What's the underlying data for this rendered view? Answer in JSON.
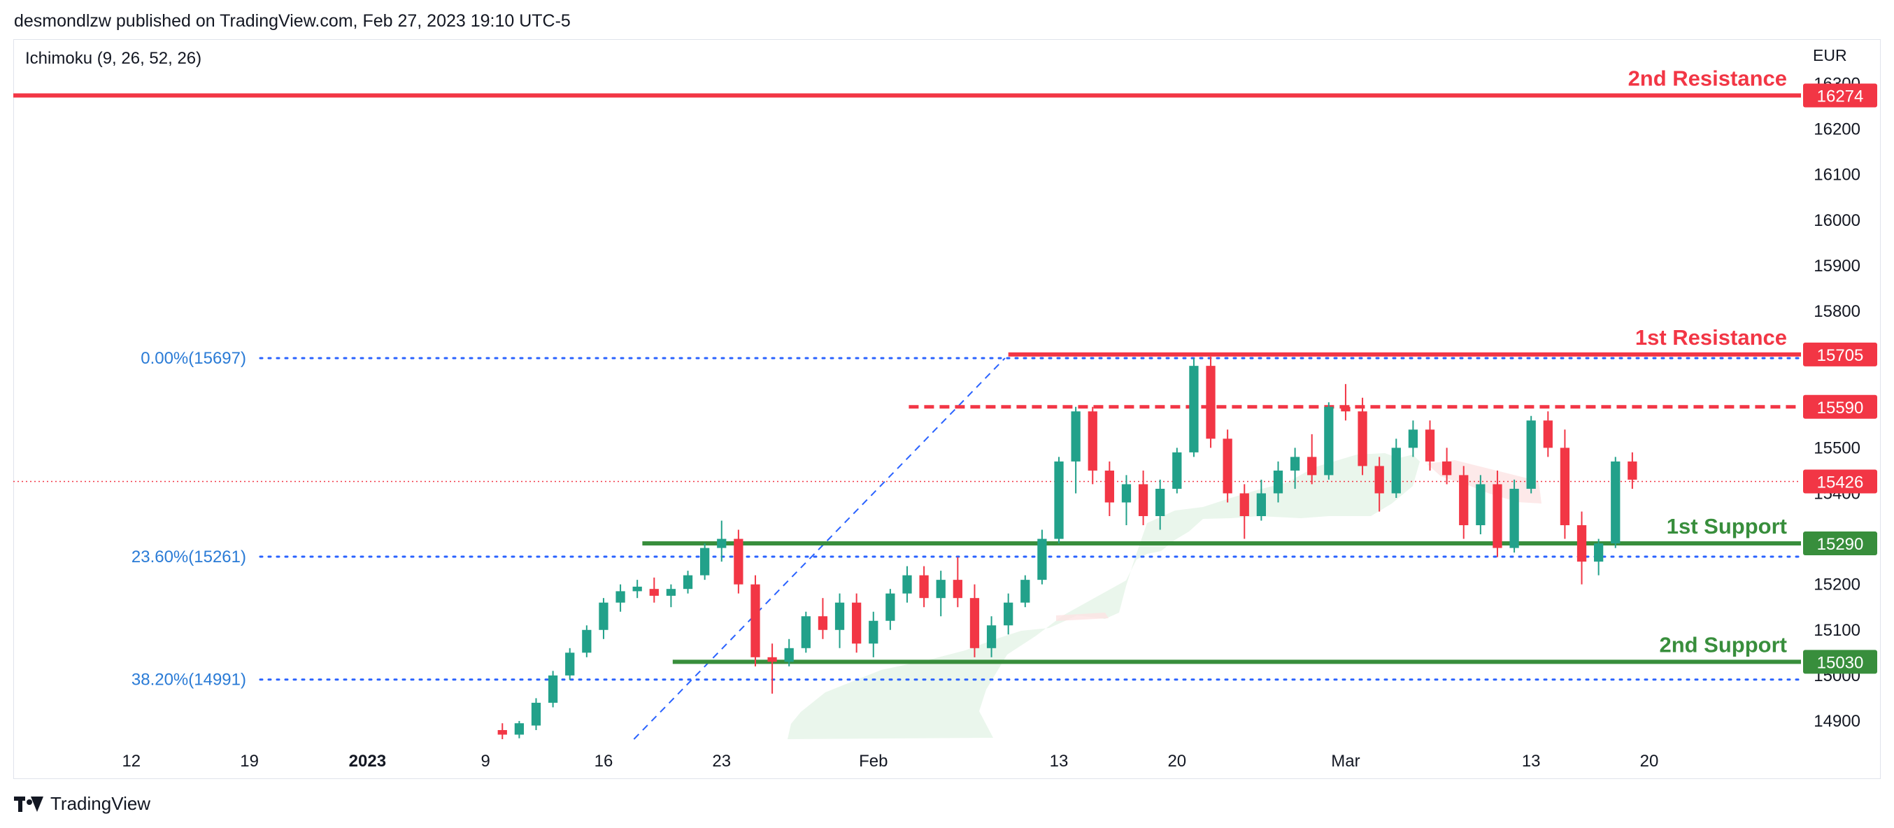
{
  "header": {
    "publisher": "desmondlzw published on TradingView.com, Feb 27, 2023 19:10 UTC-5"
  },
  "indicator_label": "Ichimoku (9, 26, 52, 26)",
  "currency": "EUR",
  "footer": {
    "brand": "TradingView"
  },
  "colors": {
    "up": "#22a18a",
    "down": "#f23645",
    "resistance": "#f23645",
    "support": "#388e3c",
    "fib": "#2962ff",
    "fib_text": "#2a7bd6",
    "cloud_green": "#e3f3e6",
    "cloud_red": "#fde3e3",
    "axis_text": "#131722"
  },
  "chart_data": {
    "type": "candlestick",
    "y_ticks": [
      14900,
      15000,
      15100,
      15200,
      15300,
      15400,
      15500,
      15600,
      15700,
      15800,
      15900,
      16000,
      16100,
      16200,
      16300
    ],
    "x_ticks": [
      {
        "label": "12",
        "day": -20
      },
      {
        "label": "19",
        "day": -13
      },
      {
        "label": "2023",
        "day": -6,
        "bold": true
      },
      {
        "label": "9",
        "day": 1
      },
      {
        "label": "16",
        "day": 8
      },
      {
        "label": "23",
        "day": 15
      },
      {
        "label": "Feb",
        "day": 24
      },
      {
        "label": "13",
        "day": 35
      },
      {
        "label": "20",
        "day": 42
      },
      {
        "label": "Mar",
        "day": 52
      },
      {
        "label": "13",
        "day": 63
      },
      {
        "label": "20",
        "day": 70
      }
    ],
    "ylim": [
      14860,
      16330
    ],
    "xlim": [
      -27,
      79
    ],
    "levels": [
      {
        "name": "2nd Resistance",
        "value": 16274,
        "badge": "16274",
        "kind": "resistance",
        "style": "solid",
        "from_day": -27
      },
      {
        "name": "1st Resistance",
        "value": 15705,
        "badge": "15705",
        "kind": "resistance",
        "style": "solid",
        "from_day": 32.0
      },
      {
        "name": "",
        "value": 15590,
        "badge": "15590",
        "kind": "resistance",
        "style": "dashed",
        "from_day": 26.1
      },
      {
        "name": "1st Support",
        "value": 15290,
        "badge": "15290",
        "kind": "support",
        "style": "solid",
        "from_day": 10.3
      },
      {
        "name": "2nd Support",
        "value": 15030,
        "badge": "15030",
        "kind": "support",
        "style": "solid",
        "from_day": 12.1
      }
    ],
    "current_price": {
      "value": 15426,
      "badge": "15426"
    },
    "fib_levels": [
      {
        "label": "0.00%(15697)",
        "value": 15697
      },
      {
        "label": "23.60%(15261)",
        "value": 15261
      },
      {
        "label": "38.20%(14991)",
        "value": 14991
      }
    ],
    "fib_trend": {
      "from": {
        "day": 9.8,
        "value": 14860
      },
      "to": {
        "day": 31.8,
        "value": 15697
      }
    },
    "candles": [
      [
        2,
        14880,
        14895,
        14860,
        14870
      ],
      [
        3,
        14870,
        14900,
        14862,
        14895
      ],
      [
        4,
        14890,
        14950,
        14880,
        14940
      ],
      [
        5,
        14940,
        15010,
        14930,
        15000
      ],
      [
        6,
        15000,
        15060,
        14990,
        15050
      ],
      [
        7,
        15050,
        15110,
        15040,
        15100
      ],
      [
        8,
        15100,
        15170,
        15080,
        15160
      ],
      [
        9,
        15160,
        15200,
        15140,
        15185
      ],
      [
        10,
        15185,
        15210,
        15170,
        15195
      ],
      [
        11,
        15190,
        15215,
        15160,
        15175
      ],
      [
        12,
        15175,
        15200,
        15150,
        15190
      ],
      [
        13,
        15190,
        15230,
        15180,
        15220
      ],
      [
        14,
        15220,
        15290,
        15210,
        15280
      ],
      [
        15,
        15280,
        15340,
        15250,
        15300
      ],
      [
        16,
        15300,
        15320,
        15180,
        15200
      ],
      [
        17,
        15200,
        15220,
        15020,
        15040
      ],
      [
        18,
        15040,
        15070,
        14960,
        15030
      ],
      [
        19,
        15030,
        15080,
        15020,
        15060
      ],
      [
        20,
        15060,
        15140,
        15050,
        15130
      ],
      [
        21,
        15130,
        15170,
        15080,
        15100
      ],
      [
        22,
        15100,
        15180,
        15060,
        15160
      ],
      [
        23,
        15160,
        15180,
        15050,
        15070
      ],
      [
        24,
        15070,
        15140,
        15040,
        15120
      ],
      [
        25,
        15120,
        15190,
        15100,
        15180
      ],
      [
        26,
        15180,
        15240,
        15160,
        15220
      ],
      [
        27,
        15220,
        15240,
        15150,
        15170
      ],
      [
        28,
        15170,
        15230,
        15130,
        15210
      ],
      [
        29,
        15210,
        15260,
        15150,
        15170
      ],
      [
        30,
        15170,
        15200,
        15040,
        15060
      ],
      [
        31,
        15060,
        15130,
        15040,
        15110
      ],
      [
        32,
        15110,
        15180,
        15090,
        15160
      ],
      [
        33,
        15160,
        15220,
        15150,
        15210
      ],
      [
        34,
        15210,
        15320,
        15200,
        15300
      ],
      [
        35,
        15300,
        15480,
        15290,
        15470
      ],
      [
        36,
        15470,
        15590,
        15400,
        15580
      ],
      [
        37,
        15580,
        15590,
        15420,
        15450
      ],
      [
        38,
        15450,
        15470,
        15350,
        15380
      ],
      [
        39,
        15380,
        15440,
        15330,
        15420
      ],
      [
        40,
        15420,
        15450,
        15330,
        15350
      ],
      [
        41,
        15350,
        15430,
        15320,
        15410
      ],
      [
        42,
        15410,
        15500,
        15400,
        15490
      ],
      [
        43,
        15490,
        15697,
        15480,
        15680
      ],
      [
        44,
        15680,
        15700,
        15500,
        15520
      ],
      [
        45,
        15520,
        15540,
        15380,
        15400
      ],
      [
        46,
        15400,
        15420,
        15300,
        15350
      ],
      [
        47,
        15350,
        15430,
        15340,
        15400
      ],
      [
        48,
        15400,
        15470,
        15380,
        15450
      ],
      [
        49,
        15450,
        15500,
        15410,
        15480
      ],
      [
        50,
        15480,
        15530,
        15420,
        15440
      ],
      [
        51,
        15440,
        15600,
        15430,
        15590
      ],
      [
        52,
        15590,
        15640,
        15560,
        15580
      ],
      [
        53,
        15580,
        15610,
        15440,
        15460
      ],
      [
        54,
        15460,
        15480,
        15360,
        15400
      ],
      [
        55,
        15400,
        15520,
        15390,
        15500
      ],
      [
        56,
        15500,
        15560,
        15480,
        15540
      ],
      [
        57,
        15540,
        15560,
        15450,
        15470
      ],
      [
        58,
        15470,
        15500,
        15420,
        15440
      ],
      [
        59,
        15440,
        15460,
        15300,
        15330
      ],
      [
        60,
        15330,
        15440,
        15310,
        15420
      ],
      [
        61,
        15420,
        15450,
        15260,
        15280
      ],
      [
        62,
        15280,
        15430,
        15270,
        15410
      ],
      [
        63,
        15410,
        15570,
        15400,
        15560
      ],
      [
        64,
        15560,
        15580,
        15480,
        15500
      ],
      [
        65,
        15500,
        15540,
        15300,
        15330
      ],
      [
        66,
        15330,
        15360,
        15200,
        15250
      ],
      [
        67,
        15250,
        15300,
        15220,
        15290
      ],
      [
        68,
        15290,
        15480,
        15280,
        15470
      ],
      [
        69,
        15470,
        15490,
        15410,
        15430
      ]
    ]
  }
}
